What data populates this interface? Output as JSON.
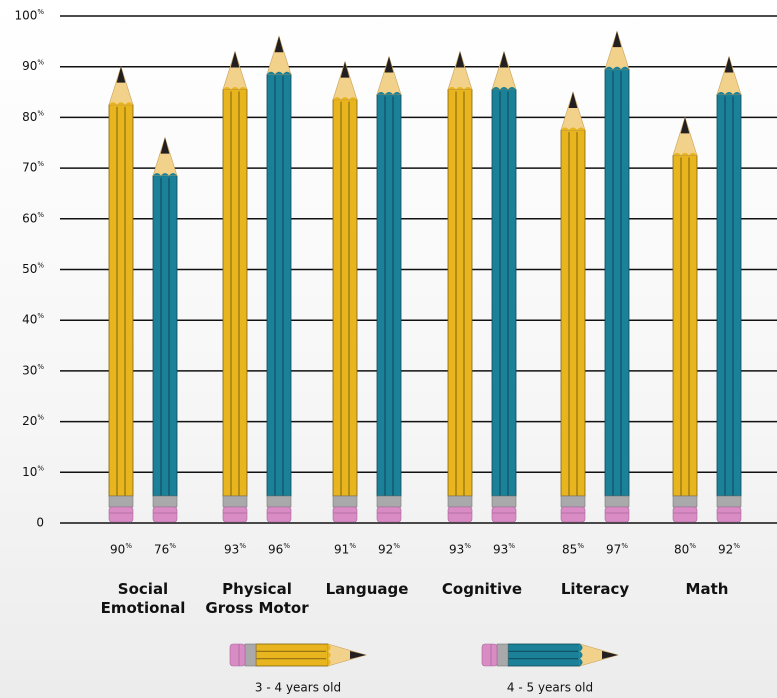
{
  "chart_data": {
    "type": "pencil-bar",
    "categories": [
      "Social Emotional",
      "Physical Gross Motor",
      "Language",
      "Cognitive",
      "Literacy",
      "Math"
    ],
    "series": [
      {
        "name": "3 - 4 years old",
        "color": "#e8b51e",
        "values": [
          90,
          93,
          91,
          93,
          85,
          80
        ],
        "value_labels": [
          "90%",
          "93%",
          "91%",
          "93%",
          "85%",
          "80%"
        ]
      },
      {
        "name": "4 - 5 years old",
        "color": "#1a8199",
        "values": [
          76,
          96,
          92,
          93,
          97,
          92
        ],
        "value_labels": [
          "76%",
          "96%",
          "92%",
          "93%",
          "97%",
          "92%"
        ]
      }
    ],
    "ylim": [
      0,
      100
    ],
    "yticks": [
      0,
      {
        "value": 10,
        "label": "10%"
      },
      {
        "value": 20,
        "label": "20%"
      },
      {
        "value": 30,
        "label": "30%"
      },
      {
        "value": 40,
        "label": "40%"
      },
      {
        "value": 50,
        "label": "50%"
      },
      {
        "value": 60,
        "label": "60%"
      },
      {
        "value": 70,
        "label": "70%"
      },
      {
        "value": 80,
        "label": "80%"
      },
      {
        "value": 90,
        "label": "90%"
      },
      {
        "value": 100,
        "label": "100%"
      }
    ],
    "grid": true
  }
}
